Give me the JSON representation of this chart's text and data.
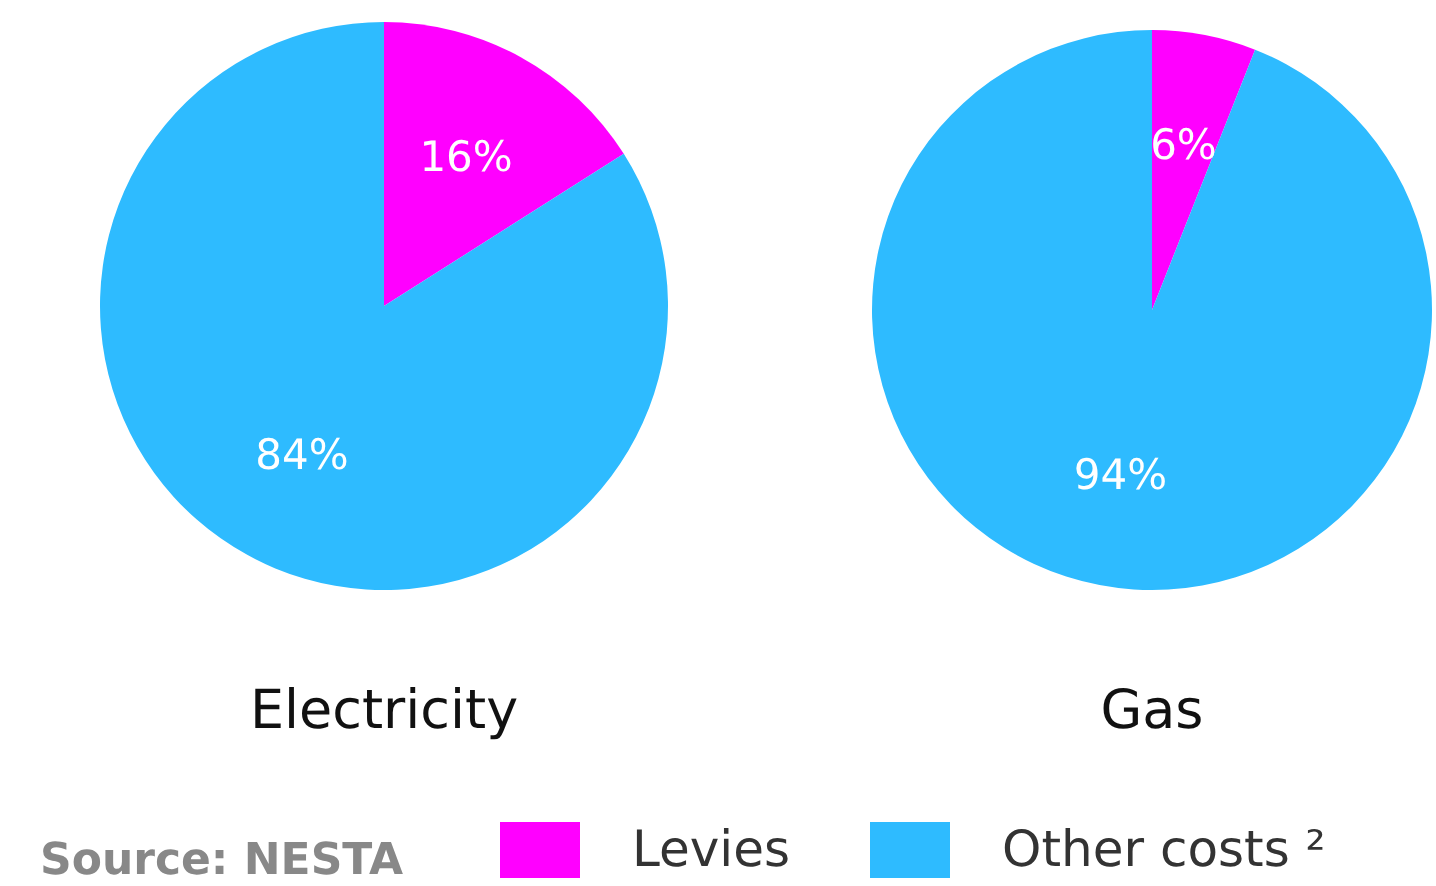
{
  "chart_data": [
    {
      "type": "pie",
      "title": "Electricity",
      "categories": [
        "Levies",
        "Other costs ²"
      ],
      "values": [
        16,
        84
      ],
      "colors": [
        "#ff00ff",
        "#2ebbff"
      ],
      "value_labels": [
        "16%",
        "84%"
      ],
      "legend": "bottom",
      "annotations": [
        "Source: NESTA"
      ]
    },
    {
      "type": "pie",
      "title": "Gas",
      "categories": [
        null,
        null
      ],
      "values": [
        6,
        94
      ],
      "colors": [
        "#ff00ff",
        "#2ebbff"
      ],
      "value_labels": [
        "6%",
        "94%"
      ]
    }
  ]
}
